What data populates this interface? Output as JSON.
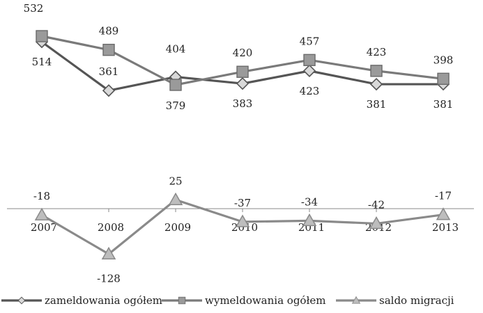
{
  "chart_data": {
    "type": "line",
    "categories": [
      "2007",
      "2008",
      "2009",
      "2010",
      "2011",
      "2012",
      "2013"
    ],
    "series": [
      {
        "name": "zameldowania ogółem",
        "values": [
          514,
          361,
          404,
          383,
          423,
          381,
          381
        ],
        "color": "#555555",
        "marker": "diamond",
        "labels": [
          "514",
          "361",
          "404",
          "383",
          "423",
          "381",
          "381"
        ]
      },
      {
        "name": "wymeldowania ogółem",
        "values": [
          532,
          489,
          379,
          420,
          457,
          423,
          398
        ],
        "color": "#7a7a7a",
        "marker": "square",
        "labels": [
          "532",
          "489",
          "379",
          "420",
          "457",
          "423",
          "398"
        ]
      },
      {
        "name": "saldo migracji",
        "values": [
          -18,
          -128,
          25,
          -37,
          -34,
          -42,
          -17
        ],
        "color": "#8a8a8a",
        "marker": "triangle",
        "labels": [
          "-18",
          "-128",
          "25",
          "-37",
          "-34",
          "-42",
          "-17"
        ]
      }
    ],
    "legend_position": "bottom",
    "grid": false
  }
}
